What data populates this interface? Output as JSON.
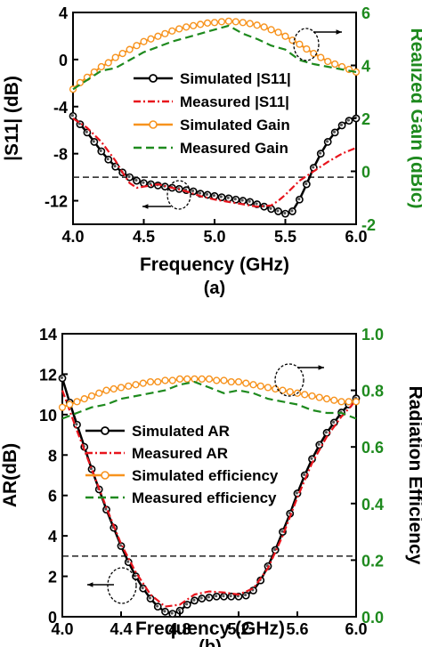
{
  "colors": {
    "black": "#000000",
    "red": "#e8141c",
    "orange": "#f7931e",
    "green": "#1e8a1e",
    "dashed_ref": "#222222"
  },
  "chart_data": [
    {
      "type": "line",
      "panel_label": "(a)",
      "xlabel": "Frequency (GHz)",
      "ylabel_left": "|S11| (dB)",
      "ylabel_right": "Realized Gain (dBic)",
      "xlim": [
        4.0,
        6.0
      ],
      "ylim_left": [
        -14,
        4
      ],
      "ylim_right": [
        -2,
        6
      ],
      "x_ticks": [
        "4.0",
        "4.5",
        "5.0",
        "5.5",
        "6.0"
      ],
      "x_tick_values": [
        4.0,
        4.5,
        5.0,
        5.5,
        6.0
      ],
      "y_ticks_left": [
        "4",
        "0",
        "-4",
        "-8",
        "-12"
      ],
      "y_tick_values_left": [
        4,
        0,
        -4,
        -8,
        -12
      ],
      "y_ticks_right": [
        "6",
        "4",
        "2",
        "0",
        "-2"
      ],
      "y_tick_values_right": [
        6,
        4,
        2,
        0,
        -2
      ],
      "reference_line": {
        "axis": "left",
        "value": -10
      },
      "legend": [
        {
          "label": "Simulated |S11|",
          "color": "#000000",
          "style": "solid-circle"
        },
        {
          "label": "Measured |S11|",
          "color": "#e8141c",
          "style": "dashdot"
        },
        {
          "label": "Simulated Gain",
          "color": "#f7931e",
          "style": "solid-open-circle"
        },
        {
          "label": "Measured Gain",
          "color": "#1e8a1e",
          "style": "dashed"
        }
      ],
      "series": [
        {
          "name": "Simulated |S11|",
          "axis": "left",
          "x": [
            4.0,
            4.05,
            4.1,
            4.15,
            4.2,
            4.25,
            4.3,
            4.35,
            4.4,
            4.45,
            4.5,
            4.55,
            4.6,
            4.65,
            4.7,
            4.75,
            4.8,
            4.85,
            4.9,
            4.95,
            5.0,
            5.05,
            5.1,
            5.15,
            5.2,
            5.25,
            5.3,
            5.35,
            5.4,
            5.45,
            5.5,
            5.55,
            5.6,
            5.65,
            5.7,
            5.75,
            5.8,
            5.85,
            5.9,
            5.95,
            6.0
          ],
          "y": [
            -4.8,
            -5.5,
            -6.2,
            -7.0,
            -7.8,
            -8.5,
            -9.1,
            -9.6,
            -10.0,
            -10.3,
            -10.5,
            -10.6,
            -10.7,
            -10.8,
            -10.9,
            -11.0,
            -11.1,
            -11.2,
            -11.4,
            -11.5,
            -11.6,
            -11.7,
            -11.8,
            -11.9,
            -12.0,
            -12.1,
            -12.3,
            -12.5,
            -12.7,
            -12.9,
            -13.1,
            -12.9,
            -11.9,
            -10.6,
            -9.2,
            -8.0,
            -7.0,
            -6.2,
            -5.6,
            -5.2,
            -5.0
          ]
        },
        {
          "name": "Measured |S11|",
          "axis": "left",
          "x": [
            4.0,
            4.1,
            4.2,
            4.3,
            4.35,
            4.4,
            4.45,
            4.5,
            4.6,
            4.7,
            4.8,
            4.9,
            5.0,
            5.1,
            5.2,
            5.3,
            5.4,
            5.45,
            5.5,
            5.55,
            5.6,
            5.7,
            5.8,
            5.9,
            6.0
          ],
          "y": [
            -5.0,
            -5.8,
            -7.0,
            -8.6,
            -9.6,
            -10.5,
            -10.9,
            -10.8,
            -10.6,
            -10.9,
            -11.2,
            -11.6,
            -11.9,
            -12.1,
            -12.3,
            -12.5,
            -12.4,
            -12.0,
            -11.5,
            -10.9,
            -10.3,
            -9.5,
            -8.7,
            -8.0,
            -7.5
          ]
        },
        {
          "name": "Simulated Gain",
          "axis": "right",
          "x": [
            4.0,
            4.05,
            4.1,
            4.15,
            4.2,
            4.25,
            4.3,
            4.35,
            4.4,
            4.45,
            4.5,
            4.55,
            4.6,
            4.65,
            4.7,
            4.75,
            4.8,
            4.85,
            4.9,
            4.95,
            5.0,
            5.05,
            5.1,
            5.15,
            5.2,
            5.25,
            5.3,
            5.35,
            5.4,
            5.45,
            5.5,
            5.55,
            5.6,
            5.65,
            5.7,
            5.75,
            5.8,
            5.85,
            5.9,
            5.95,
            6.0
          ],
          "y": [
            3.1,
            3.35,
            3.55,
            3.75,
            3.95,
            4.1,
            4.3,
            4.45,
            4.6,
            4.75,
            4.9,
            5.0,
            5.1,
            5.2,
            5.3,
            5.38,
            5.45,
            5.5,
            5.55,
            5.6,
            5.62,
            5.65,
            5.67,
            5.65,
            5.62,
            5.58,
            5.52,
            5.45,
            5.35,
            5.25,
            5.1,
            4.95,
            4.8,
            4.62,
            4.45,
            4.3,
            4.15,
            4.05,
            3.95,
            3.85,
            3.75
          ]
        },
        {
          "name": "Measured Gain",
          "axis": "right",
          "x": [
            4.0,
            4.1,
            4.2,
            4.3,
            4.4,
            4.5,
            4.6,
            4.7,
            4.8,
            4.9,
            5.0,
            5.1,
            5.2,
            5.3,
            5.4,
            5.5,
            5.6,
            5.7,
            5.8,
            5.9,
            6.0
          ],
          "y": [
            3.1,
            3.45,
            3.8,
            3.9,
            4.2,
            4.5,
            4.7,
            4.9,
            5.05,
            5.2,
            5.35,
            5.5,
            5.2,
            5.0,
            4.75,
            4.6,
            4.2,
            4.05,
            3.95,
            3.85,
            3.75
          ]
        }
      ]
    },
    {
      "type": "line",
      "panel_label": "(b)",
      "xlabel": "Frequency (GHz)",
      "ylabel_left": "AR(dB)",
      "ylabel_right": "Radiation Efficiency",
      "xlim": [
        4.0,
        6.0
      ],
      "ylim_left": [
        0,
        14
      ],
      "ylim_right": [
        0.0,
        1.0
      ],
      "x_ticks": [
        "4.0",
        "4.4",
        "4.8",
        "5.2",
        "5.6",
        "6.0"
      ],
      "x_tick_values": [
        4.0,
        4.4,
        4.8,
        5.2,
        5.6,
        6.0
      ],
      "y_ticks_left": [
        "14",
        "12",
        "10",
        "8",
        "6",
        "4",
        "2",
        "0"
      ],
      "y_tick_values_left": [
        14,
        12,
        10,
        8,
        6,
        4,
        2,
        0
      ],
      "y_ticks_right": [
        "1.0",
        "0.8",
        "0.6",
        "0.4",
        "0.2",
        "0.0"
      ],
      "y_tick_values_right": [
        1.0,
        0.8,
        0.6,
        0.4,
        0.2,
        0.0
      ],
      "reference_line": {
        "axis": "left",
        "value": 3
      },
      "legend": [
        {
          "label": "Simulated AR",
          "color": "#000000",
          "style": "solid-circle"
        },
        {
          "label": "Measured AR",
          "color": "#e8141c",
          "style": "dashdot"
        },
        {
          "label": "Simulated efficiency",
          "color": "#f7931e",
          "style": "solid-open-circle"
        },
        {
          "label": "Measured efficiency",
          "color": "#1e8a1e",
          "style": "dashed"
        }
      ],
      "series": [
        {
          "name": "Simulated AR",
          "axis": "left",
          "x": [
            4.0,
            4.05,
            4.1,
            4.15,
            4.2,
            4.25,
            4.3,
            4.35,
            4.4,
            4.45,
            4.5,
            4.55,
            4.6,
            4.65,
            4.7,
            4.75,
            4.8,
            4.85,
            4.9,
            4.95,
            5.0,
            5.05,
            5.1,
            5.15,
            5.2,
            5.25,
            5.3,
            5.35,
            5.4,
            5.45,
            5.5,
            5.55,
            5.6,
            5.65,
            5.7,
            5.75,
            5.8,
            5.85,
            5.9,
            5.95,
            6.0
          ],
          "y": [
            11.8,
            10.6,
            9.5,
            8.4,
            7.3,
            6.3,
            5.3,
            4.4,
            3.5,
            2.7,
            2.0,
            1.4,
            0.9,
            0.5,
            0.25,
            0.15,
            0.3,
            0.6,
            0.8,
            0.9,
            0.95,
            1.0,
            1.0,
            1.0,
            1.0,
            1.05,
            1.3,
            1.8,
            2.5,
            3.3,
            4.2,
            5.1,
            6.1,
            7.0,
            7.8,
            8.5,
            9.1,
            9.6,
            10.1,
            10.5,
            10.8
          ]
        },
        {
          "name": "Measured AR",
          "axis": "left",
          "x": [
            4.0,
            4.1,
            4.2,
            4.3,
            4.4,
            4.5,
            4.6,
            4.7,
            4.8,
            4.9,
            5.0,
            5.1,
            5.2,
            5.3,
            5.4,
            5.5,
            5.6,
            5.7,
            5.8,
            5.9,
            6.0
          ],
          "y": [
            11.2,
            9.2,
            7.3,
            5.4,
            3.6,
            2.2,
            1.1,
            0.5,
            0.6,
            1.1,
            1.25,
            1.2,
            1.1,
            1.4,
            2.4,
            4.0,
            5.9,
            7.6,
            8.9,
            9.9,
            10.7
          ]
        },
        {
          "name": "Simulated efficiency",
          "axis": "right",
          "x": [
            4.0,
            4.05,
            4.1,
            4.15,
            4.2,
            4.25,
            4.3,
            4.35,
            4.4,
            4.45,
            4.5,
            4.55,
            4.6,
            4.65,
            4.7,
            4.75,
            4.8,
            4.85,
            4.9,
            4.95,
            5.0,
            5.05,
            5.1,
            5.15,
            5.2,
            5.25,
            5.3,
            5.35,
            5.4,
            5.45,
            5.5,
            5.55,
            5.6,
            5.65,
            5.7,
            5.75,
            5.8,
            5.85,
            5.9,
            5.95,
            6.0
          ],
          "y": [
            0.74,
            0.75,
            0.76,
            0.77,
            0.78,
            0.79,
            0.8,
            0.805,
            0.81,
            0.815,
            0.82,
            0.825,
            0.83,
            0.83,
            0.835,
            0.835,
            0.84,
            0.84,
            0.84,
            0.84,
            0.84,
            0.835,
            0.835,
            0.83,
            0.83,
            0.825,
            0.82,
            0.815,
            0.81,
            0.805,
            0.8,
            0.795,
            0.79,
            0.785,
            0.78,
            0.775,
            0.77,
            0.765,
            0.76,
            0.76,
            0.76
          ]
        },
        {
          "name": "Measured efficiency",
          "axis": "right",
          "x": [
            4.0,
            4.1,
            4.2,
            4.3,
            4.4,
            4.5,
            4.6,
            4.7,
            4.8,
            4.9,
            5.0,
            5.1,
            5.2,
            5.3,
            5.4,
            5.5,
            5.6,
            5.7,
            5.8,
            5.9,
            6.0
          ],
          "y": [
            0.7,
            0.72,
            0.74,
            0.75,
            0.77,
            0.78,
            0.79,
            0.8,
            0.82,
            0.83,
            0.81,
            0.79,
            0.8,
            0.79,
            0.77,
            0.76,
            0.75,
            0.73,
            0.72,
            0.72,
            0.7
          ]
        }
      ]
    }
  ]
}
